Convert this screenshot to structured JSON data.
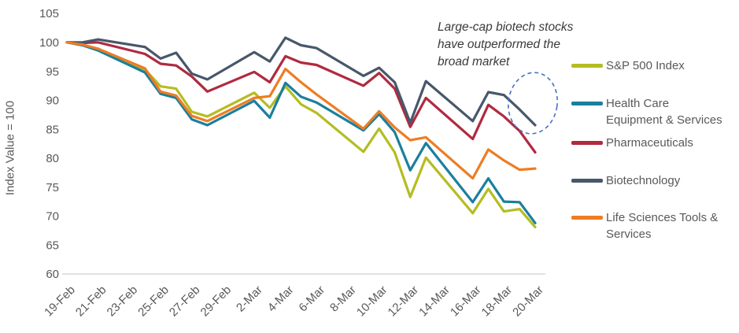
{
  "chart_data": {
    "type": "line",
    "title": "",
    "ylabel": "Index Value = 100",
    "ylim": [
      60,
      105
    ],
    "y_ticks": [
      105,
      100,
      95,
      90,
      85,
      80,
      75,
      70,
      65,
      60
    ],
    "grid": false,
    "legend_position": "right",
    "x_tick_labels": [
      "19-Feb",
      "21-Feb",
      "23-Feb",
      "25-Feb",
      "27-Feb",
      "29-Feb",
      "2-Mar",
      "4-Mar",
      "6-Mar",
      "8-Mar",
      "10-Mar",
      "12-Mar",
      "14-Mar",
      "16-Mar",
      "18-Mar",
      "20-Mar"
    ],
    "x_tick_days": [
      0,
      2,
      4,
      6,
      8,
      10,
      12,
      14,
      16,
      18,
      20,
      22,
      24,
      26,
      28,
      30
    ],
    "dates": [
      "19-Feb",
      "20-Feb",
      "21-Feb",
      "24-Feb",
      "25-Feb",
      "26-Feb",
      "27-Feb",
      "28-Feb",
      "2-Mar",
      "3-Mar",
      "4-Mar",
      "5-Mar",
      "6-Mar",
      "9-Mar",
      "10-Mar",
      "11-Mar",
      "12-Mar",
      "13-Mar",
      "16-Mar",
      "17-Mar",
      "18-Mar",
      "19-Mar",
      "20-Mar"
    ],
    "day_offsets": [
      0,
      1,
      2,
      5,
      6,
      7,
      8,
      9,
      12,
      13,
      14,
      15,
      16,
      19,
      20,
      21,
      22,
      23,
      26,
      27,
      28,
      29,
      30
    ],
    "series": [
      {
        "name": "S&P 500 Index",
        "slug": "sp500-index",
        "color": "#b4bd22",
        "legend_lines": [
          "S&P 500 Index"
        ],
        "values": [
          100,
          99.6,
          98.6,
          95.3,
          92.4,
          92.0,
          88.0,
          87.2,
          91.3,
          88.7,
          92.4,
          89.3,
          87.8,
          81.1,
          85.1,
          81.0,
          73.3,
          80.1,
          70.5,
          74.7,
          70.8,
          71.2,
          68.1
        ]
      },
      {
        "name": "Health Care Equipment & Services",
        "slug": "health-care-equipment-services",
        "color": "#1b7f9e",
        "legend_lines": [
          "Health Care",
          "Equipment & Services"
        ],
        "values": [
          100,
          99.5,
          98.6,
          94.8,
          91.1,
          90.4,
          86.7,
          85.7,
          89.9,
          87.0,
          93.0,
          90.6,
          89.6,
          84.8,
          87.6,
          84.5,
          77.9,
          82.6,
          72.4,
          76.5,
          72.5,
          72.4,
          68.8
        ]
      },
      {
        "name": "Pharmaceuticals",
        "slug": "pharmaceuticals",
        "color": "#b02a40",
        "legend_lines": [
          "Pharmaceuticals"
        ],
        "values": [
          100,
          99.9,
          100.0,
          98.0,
          96.3,
          96.0,
          94.1,
          91.5,
          94.9,
          93.1,
          97.6,
          96.5,
          96.1,
          92.5,
          94.7,
          92.0,
          85.4,
          90.4,
          83.3,
          89.2,
          87.2,
          84.7,
          81.0
        ]
      },
      {
        "name": "Biotechnology",
        "slug": "biotechnology",
        "color": "#47586a",
        "legend_lines": [
          "Biotechnology"
        ],
        "values": [
          100,
          100.0,
          100.5,
          99.2,
          97.2,
          98.2,
          94.6,
          93.6,
          98.3,
          96.7,
          100.8,
          99.5,
          99.0,
          94.2,
          95.6,
          93.1,
          86.1,
          93.3,
          86.4,
          91.4,
          90.9,
          88.4,
          85.7
        ]
      },
      {
        "name": "Life Sciences Tools & Services",
        "slug": "life-sciences-tools-services",
        "color": "#ed7d23",
        "legend_lines": [
          "Life Sciences Tools &",
          "Services"
        ],
        "values": [
          100,
          99.6,
          98.9,
          95.5,
          91.5,
          90.8,
          87.3,
          86.4,
          90.4,
          90.7,
          95.4,
          93.1,
          91.0,
          85.1,
          88.1,
          85.3,
          83.1,
          83.6,
          76.5,
          81.5,
          79.6,
          78.0,
          78.2
        ]
      }
    ]
  },
  "annotation": {
    "lines": [
      "Large-cap biotech stocks",
      "have outperformed the",
      "broad market"
    ],
    "ellipse_color": "#4472c4"
  },
  "axis": {
    "line_color": "#d9d9d9",
    "text_color": "#595959"
  }
}
